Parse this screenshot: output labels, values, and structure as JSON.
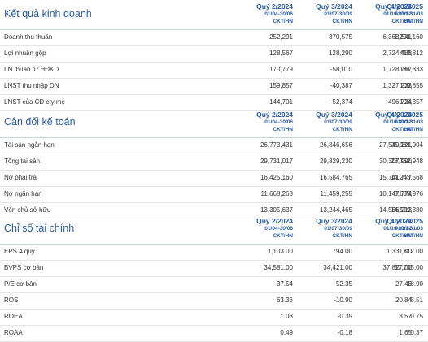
{
  "sections": [
    {
      "title": "Kết quả kinh doanh",
      "columns": [
        {
          "quarter": "Quý 2/2024",
          "period": "01/04-30/06",
          "unit": "CKT/HN"
        },
        {
          "quarter": "Quý 3/2024",
          "period": "01/07-30/09",
          "unit": "CKT/HN"
        },
        {
          "quarter": "Quý 4/2024",
          "period": "01/10-31/12",
          "unit": "CKT/HN"
        },
        {
          "quarter": "Quý 1/2025",
          "period": "01/01-31/03",
          "unit": "CKT/HN"
        }
      ],
      "rows": [
        {
          "label": "Doanh thu thuần",
          "values": [
            "252,291",
            "370,575",
            "6,368,541",
            "1,291,160"
          ]
        },
        {
          "label": "Lợi nhuận gộp",
          "values": [
            "128,567",
            "128,290",
            "2,724,488",
            "412,812"
          ]
        },
        {
          "label": "LN thuần từ HĐKD",
          "values": [
            "170,779",
            "-58,010",
            "1,728,767",
            "131,833"
          ]
        },
        {
          "label": "LNST thu nhập DN",
          "values": [
            "159,857",
            "-40,387",
            "1,327,233",
            "109,855"
          ]
        },
        {
          "label": "LNST của CĐ cty mẹ",
          "values": [
            "144,701",
            "-52,374",
            "496,724",
            "108,357"
          ]
        }
      ]
    },
    {
      "title": "Cân đối kế toán",
      "columns": [
        {
          "quarter": "Quý 2/2024",
          "period": "01/04-30/06",
          "unit": "CKT/HN"
        },
        {
          "quarter": "Quý 3/2024",
          "period": "01/07-30/09",
          "unit": "CKT/HN"
        },
        {
          "quarter": "Quý 4/2024",
          "period": "01/10-31/12",
          "unit": "CKT/HN"
        },
        {
          "quarter": "Quý 1/2025",
          "period": "01/01-31/03",
          "unit": "CKT/HN"
        }
      ],
      "rows": [
        {
          "label": "Tài sản ngắn hạn",
          "values": [
            "26,773,431",
            "26,846,656",
            "27,549,221",
            "25,981,904"
          ]
        },
        {
          "label": "Tổng tài sản",
          "values": [
            "29,731,017",
            "29,829,230",
            "30,307,990",
            "28,762,948"
          ]
        },
        {
          "label": "Nợ phải trả",
          "values": [
            "16,425,160",
            "16,584,765",
            "15,741,777",
            "14,243,568"
          ]
        },
        {
          "label": "Nợ ngắn hạn",
          "values": [
            "11,668,263",
            "11,459,255",
            "10,147,774",
            "8,635,976"
          ]
        },
        {
          "label": "Vốn chủ sở hữu",
          "values": [
            "13,305,637",
            "13,244,465",
            "14,566,213",
            "14,519,380"
          ]
        }
      ]
    },
    {
      "title": "Chỉ số tài chính",
      "columns": [
        {
          "quarter": "Quý 2/2024",
          "period": "01/04-30/06",
          "unit": "CKT/HN"
        },
        {
          "quarter": "Quý 3/2024",
          "period": "01/07-30/09",
          "unit": "CKT/HN"
        },
        {
          "quarter": "Quý 4/2024",
          "period": "01/10-31/12",
          "unit": "CKT/HN"
        },
        {
          "quarter": "Quý 1/2025",
          "period": "01/01-31/03",
          "unit": "CKT/HN"
        }
      ],
      "rows": [
        {
          "label": "EPS 4 quý",
          "values": [
            "1,103.00",
            "794.00",
            "1,331.00",
            "1,812.00"
          ]
        },
        {
          "label": "BVPS cơ bản",
          "values": [
            "34,581.00",
            "34,421.00",
            "37,827.00",
            "37,705.00"
          ]
        },
        {
          "label": "P/E cơ bản",
          "values": [
            "37.54",
            "52.35",
            "27.46",
            "18.90"
          ]
        },
        {
          "label": "ROS",
          "values": [
            "63.36",
            "-10.90",
            "20.84",
            "8.51"
          ]
        },
        {
          "label": "ROEA",
          "values": [
            "1.08",
            "-0.39",
            "3.57",
            "0.75"
          ]
        },
        {
          "label": "ROAA",
          "values": [
            "0.49",
            "-0.18",
            "1.65",
            "0.37"
          ]
        }
      ]
    }
  ]
}
